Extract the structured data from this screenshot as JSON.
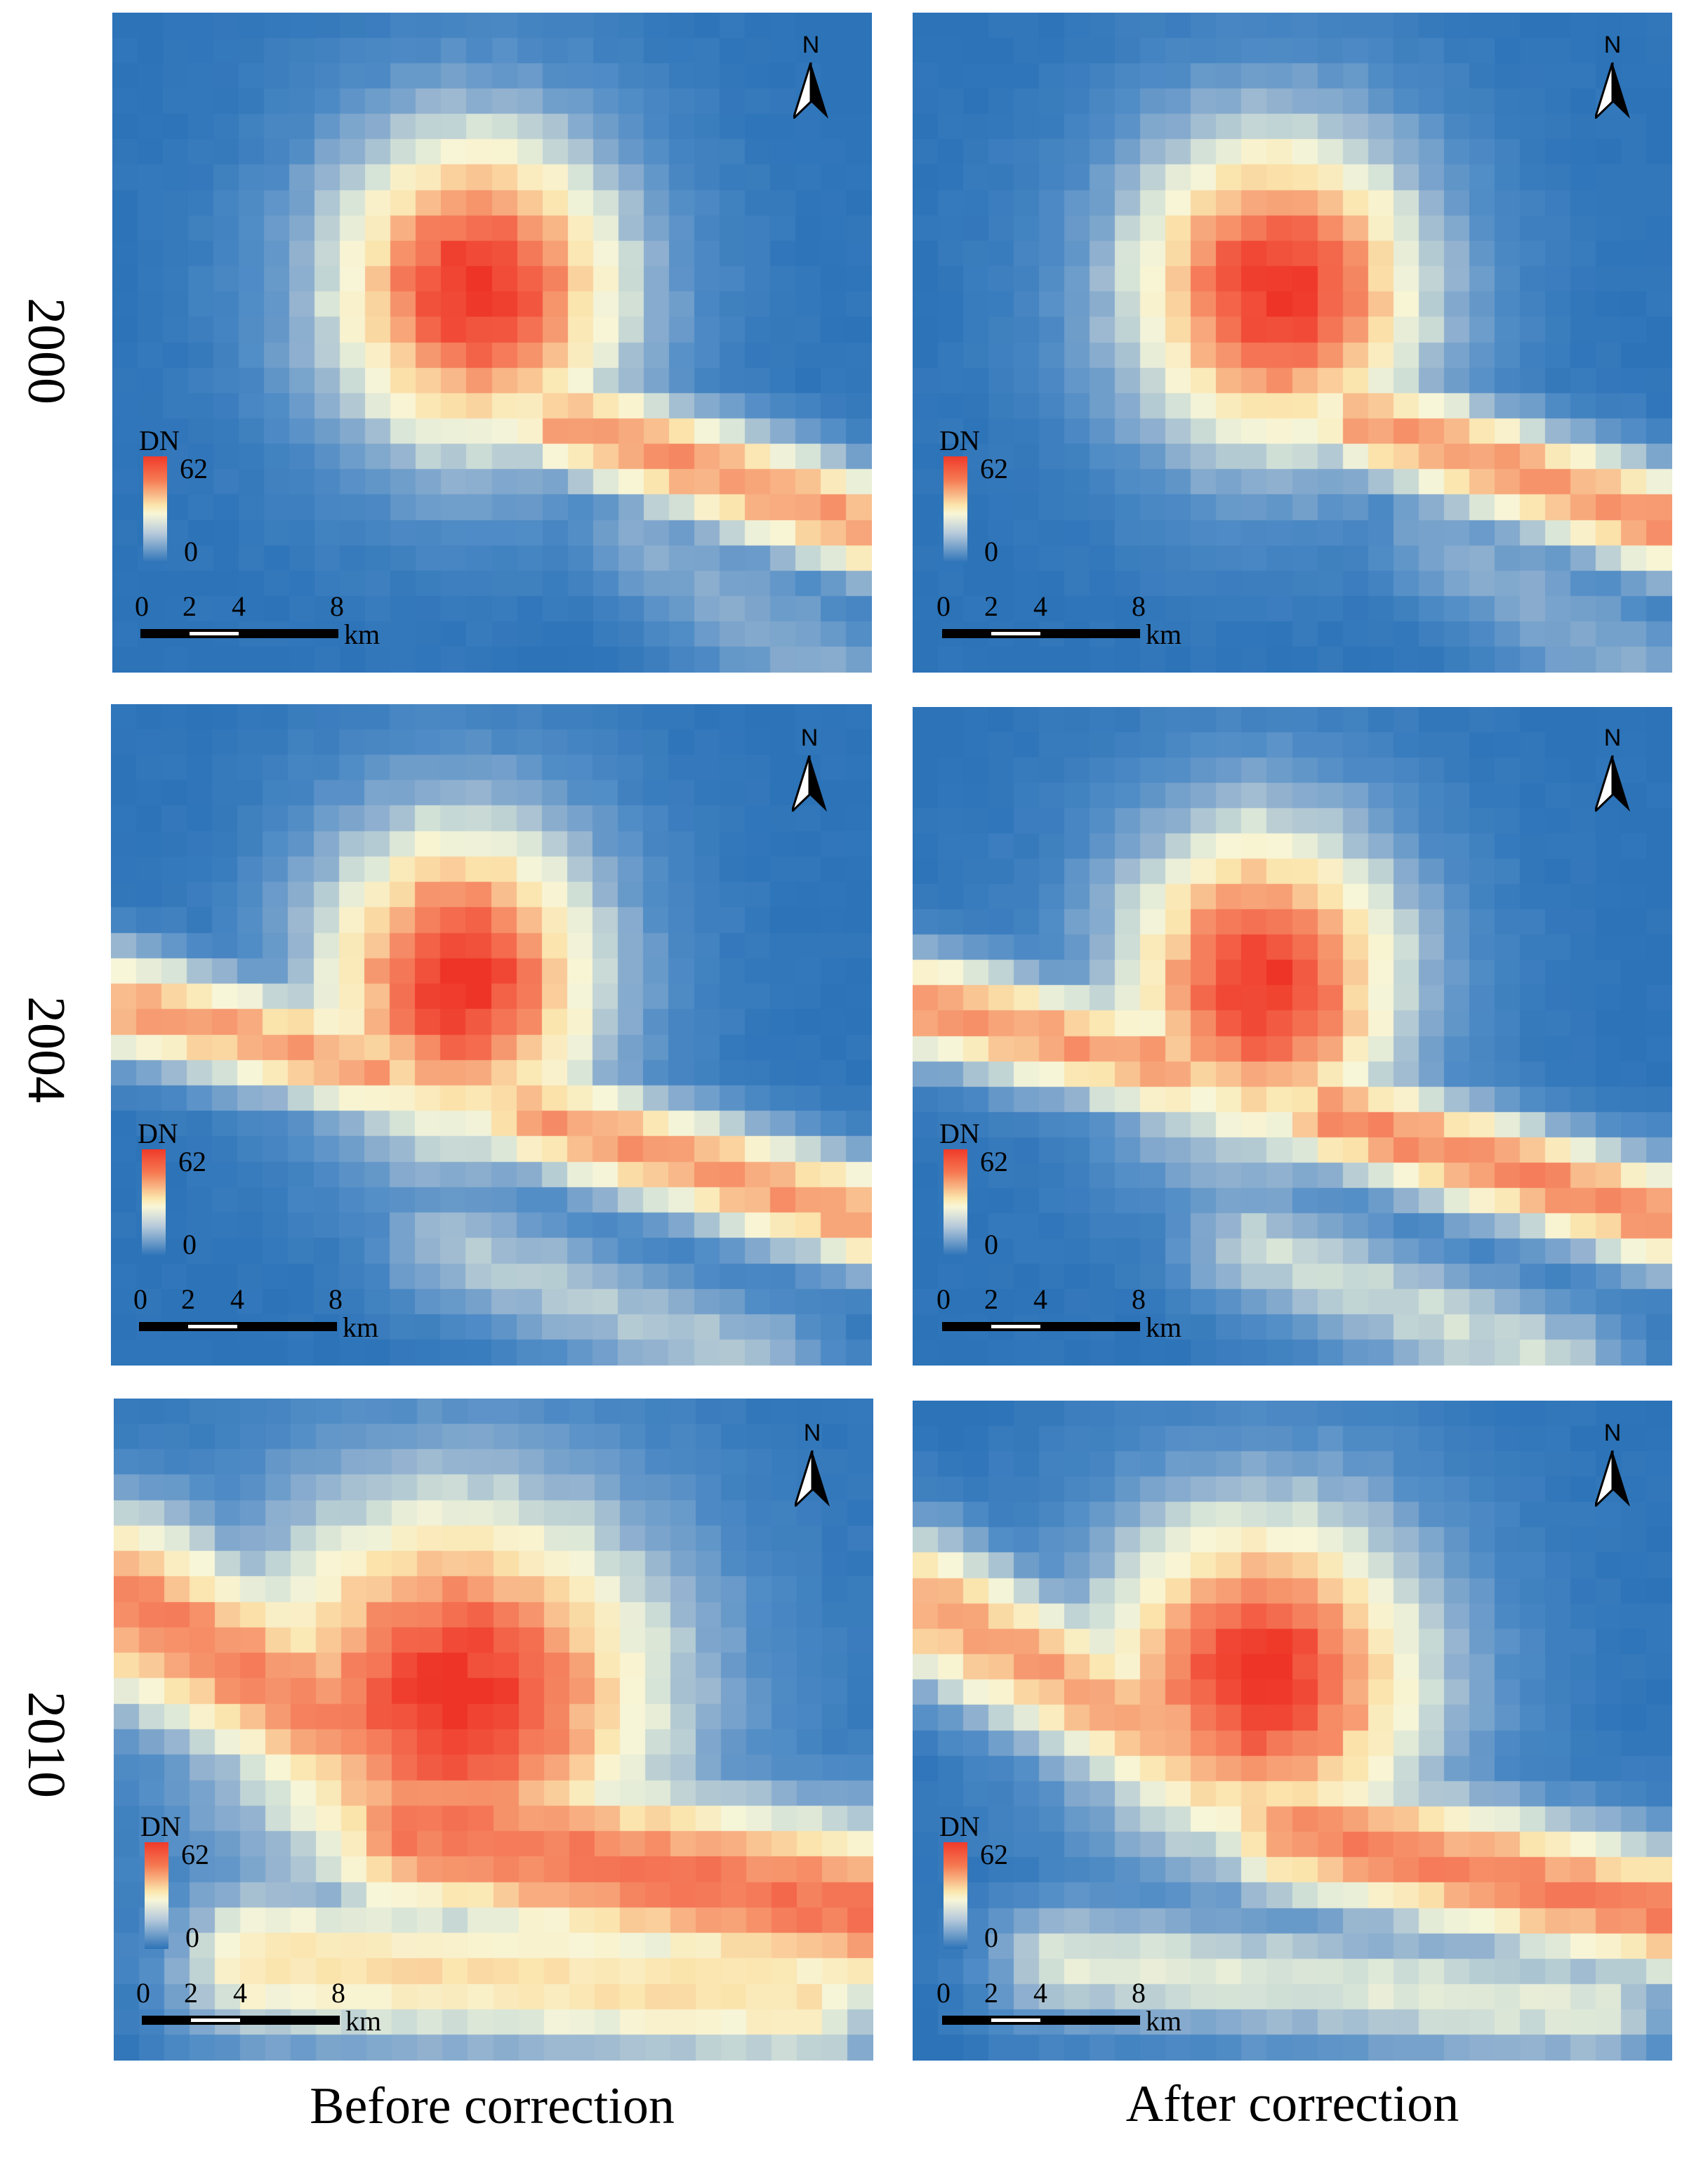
{
  "columns": [
    "Before correction",
    "After correction"
  ],
  "rows": [
    "2000",
    "2004",
    "2010"
  ],
  "legend": {
    "title": "DN",
    "max": "62",
    "min": "0"
  },
  "scale": {
    "ticks": [
      "0",
      "2",
      "4",
      "8"
    ],
    "unit": "km"
  },
  "north_label": "N",
  "colors": {
    "low": "#2c73b8",
    "mid": "#f8f6d8",
    "high": "#f03a2a"
  },
  "panels": [
    {
      "row": "2000",
      "column": "Before correction",
      "pattern": "core-with-east-arm"
    },
    {
      "row": "2000",
      "column": "After correction",
      "pattern": "core-with-east-arm"
    },
    {
      "row": "2004",
      "column": "Before correction",
      "pattern": "triangular-core-with-arms"
    },
    {
      "row": "2004",
      "column": "After correction",
      "pattern": "triangular-core-with-arms"
    },
    {
      "row": "2010",
      "column": "Before correction",
      "pattern": "expanded-urban-area"
    },
    {
      "row": "2010",
      "column": "After correction",
      "pattern": "expanded-urban-area"
    }
  ]
}
